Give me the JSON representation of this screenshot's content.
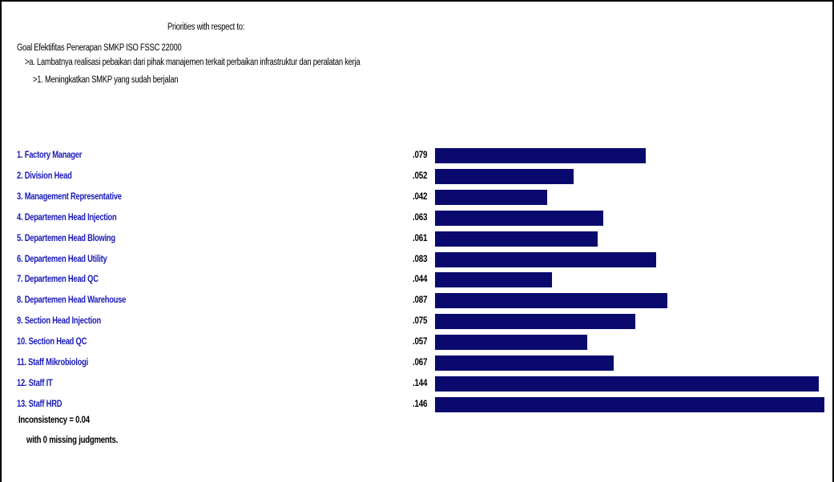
{
  "header": {
    "title": "Priorities with respect to:",
    "goal": "Goal Efektifitas Penerapan SMKP ISO FSSC 22000",
    "criterion": ">a. Lambatnya realisasi pebaikan dari pihak manajemen terkait perbaikan infrastruktur dan peralatan kerja",
    "subcriterion": ">1. Meningkatkan SMKP yang sudah berjalan"
  },
  "chart_data": {
    "type": "bar",
    "orientation": "horizontal",
    "categories": [
      "1. Factory Manager",
      "2. Division Head",
      "3. Management Representative",
      "4. Departemen Head Injection",
      "5. Departemen Head Blowing",
      "6. Departemen Head Utility",
      "7. Departemen Head QC",
      "8. Departemen Head Warehouse",
      "9. Section Head Injection",
      "10. Section Head QC",
      "11. Staff Mikrobiologi",
      "12. Staff IT",
      "13. Staff HRD"
    ],
    "value_labels": [
      ".079",
      ".052",
      ".042",
      ".063",
      ".061",
      ".083",
      ".044",
      ".087",
      ".075",
      ".057",
      ".067",
      ".144",
      ".146"
    ],
    "values": [
      0.079,
      0.052,
      0.042,
      0.063,
      0.061,
      0.083,
      0.044,
      0.087,
      0.075,
      0.057,
      0.067,
      0.144,
      0.146
    ],
    "bar_color": "#0a0a6e",
    "label_color": "#1a1ab8"
  },
  "footer": {
    "inconsistency": "Inconsistency = 0.04",
    "missing": "with 0  missing judgments."
  }
}
